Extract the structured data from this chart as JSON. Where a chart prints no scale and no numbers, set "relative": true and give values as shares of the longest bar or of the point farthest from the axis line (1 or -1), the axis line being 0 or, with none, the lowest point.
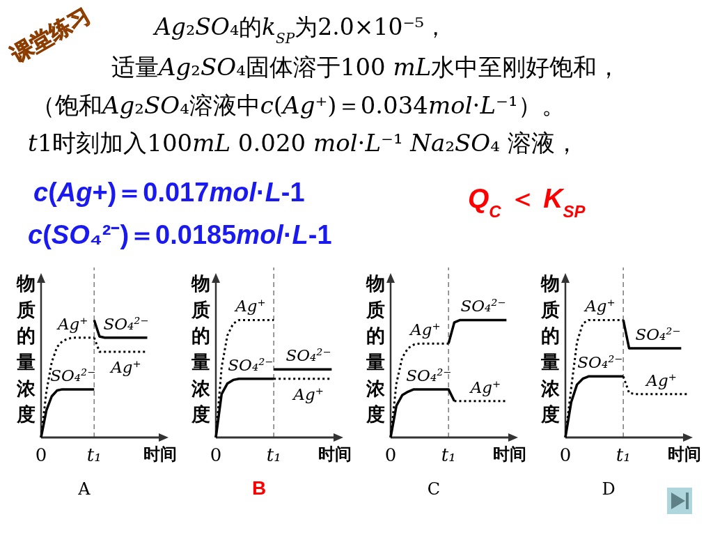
{
  "chart_data": [
    {
      "type": "other",
      "title": "课堂练习",
      "annotations": [
        "Ag₂SO₄的k$_{SP}$为2.0×10⁻⁵，",
        "适量Ag₂SO₄固体溶于100 mL水中至刚好饱和，",
        "（饱和Ag₂SO₄溶液中c(Ag⁺)＝0.034mol·L⁻¹）。",
        "t1时刻加入100mL 0.020 mol·L⁻¹ Na₂SO₄ 溶液，",
        "c(Ag+)＝0.017mol·L-1",
        "c(SO₄²⁻)＝0.0185mol·L-1",
        "Q$_{C}$ ＜ K$_{SP}$"
      ]
    },
    {
      "type": "line",
      "title": "A",
      "xlabel": "时间",
      "ylabel": "物质的量浓度",
      "relative": true,
      "categories": [
        "0",
        null,
        null,
        null,
        null,
        null,
        null,
        null,
        null,
        null,
        "t₁",
        null,
        null,
        null,
        null,
        null,
        null,
        null,
        null,
        null,
        null,
        null,
        null,
        null,
        null
      ],
      "ref_lines": [
        {
          "axis": "x",
          "value": "t₁",
          "color": "#808080",
          "line_style": "dashed"
        }
      ],
      "series": [
        {
          "name": "Ag⁺",
          "color": "#000000",
          "line_style": "dotted",
          "values": [
            0,
            0.39,
            0.64,
            0.77,
            0.82,
            0.84,
            0.85,
            0.85,
            0.85,
            0.85,
            0.85,
            null,
            null,
            null,
            null,
            null,
            null,
            null,
            null,
            null,
            null,
            null,
            null,
            null,
            null
          ]
        },
        {
          "name": "SO₄²⁻",
          "color": "#000000",
          "line_style": "solid",
          "values": [
            0,
            0.23,
            0.35,
            0.4,
            0.41,
            0.41,
            0.41,
            0.41,
            0.41,
            0.41,
            0.41,
            null,
            null,
            null,
            null,
            null,
            null,
            null,
            null,
            null,
            null,
            null,
            null,
            null,
            null
          ]
        },
        {
          "name": "SO₄²⁻",
          "color": "#000000",
          "line_style": "solid",
          "values": [
            null,
            null,
            null,
            null,
            null,
            null,
            null,
            null,
            null,
            null,
            1.0,
            0.86,
            0.85,
            0.85,
            0.85,
            0.85,
            0.85,
            0.85,
            0.85,
            0.85,
            0.85,
            null,
            null,
            null,
            null
          ]
        },
        {
          "name": "Ag⁺",
          "color": "#000000",
          "line_style": "dotted",
          "values": [
            null,
            null,
            null,
            null,
            null,
            null,
            null,
            null,
            null,
            null,
            0.85,
            0.73,
            0.73,
            0.73,
            0.73,
            0.73,
            0.73,
            0.73,
            0.73,
            0.73,
            0.73,
            null,
            null,
            null,
            null
          ]
        }
      ]
    },
    {
      "type": "line",
      "title": "B",
      "xlabel": "时间",
      "ylabel": "物质的量浓度",
      "relative": true,
      "categories": [
        "0",
        null,
        null,
        null,
        null,
        null,
        null,
        null,
        null,
        null,
        "t₁",
        null,
        null,
        null,
        null,
        null,
        null,
        null,
        null,
        null,
        null,
        null,
        null
      ],
      "ref_lines": [
        {
          "axis": "x",
          "value": "t₁",
          "color": "#808080",
          "line_style": "dashed"
        }
      ],
      "series": [
        {
          "name": "Ag⁺",
          "color": "#000000",
          "line_style": "dotted",
          "values": [
            0,
            0.6,
            0.87,
            0.97,
            1.0,
            1.0,
            1.0,
            1.0,
            1.0,
            1.0,
            1.0,
            null,
            null,
            null,
            null,
            null,
            null,
            null,
            null,
            null,
            null,
            null,
            null
          ]
        },
        {
          "name": "SO₄²⁻",
          "color": "#000000",
          "line_style": "solid",
          "values": [
            0,
            0.37,
            0.46,
            0.49,
            0.5,
            0.5,
            0.5,
            0.5,
            0.5,
            0.5,
            0.5,
            null,
            null,
            null,
            null,
            null,
            null,
            null,
            null,
            null,
            null,
            null,
            null
          ]
        },
        {
          "name": "SO₄²⁻",
          "color": "#000000",
          "line_style": "solid",
          "values": [
            null,
            null,
            null,
            null,
            null,
            null,
            null,
            null,
            null,
            null,
            0.58,
            0.58,
            0.58,
            0.58,
            0.58,
            0.58,
            0.58,
            0.58,
            0.58,
            0.58,
            0.58,
            null,
            null
          ]
        },
        {
          "name": "Ag⁺",
          "color": "#000000",
          "line_style": "dotted",
          "values": [
            null,
            null,
            null,
            null,
            null,
            null,
            null,
            null,
            null,
            null,
            0.5,
            0.5,
            0.5,
            0.5,
            0.5,
            0.5,
            0.5,
            0.5,
            0.5,
            0.5,
            0.5,
            null,
            null
          ]
        }
      ]
    },
    {
      "type": "line",
      "title": "C",
      "xlabel": "时间",
      "ylabel": "物质的量浓度",
      "relative": true,
      "categories": [
        "0",
        null,
        null,
        null,
        null,
        null,
        null,
        null,
        null,
        null,
        "t₁",
        null,
        null,
        null,
        null,
        null,
        null,
        null,
        null,
        null,
        null,
        null,
        null
      ],
      "ref_lines": [
        {
          "axis": "x",
          "value": "t₁",
          "color": "#808080",
          "line_style": "dashed"
        }
      ],
      "series": [
        {
          "name": "Ag⁺",
          "color": "#000000",
          "line_style": "dotted",
          "values": [
            0,
            0.46,
            0.68,
            0.76,
            0.79,
            0.8,
            0.8,
            0.8,
            0.8,
            0.8,
            0.8,
            null,
            null,
            null,
            null,
            null,
            null,
            null,
            null,
            null,
            null,
            null,
            null
          ]
        },
        {
          "name": "SO₄²⁻",
          "color": "#000000",
          "line_style": "solid",
          "values": [
            0,
            0.27,
            0.36,
            0.39,
            0.41,
            0.41,
            0.41,
            0.41,
            0.41,
            0.41,
            0.41,
            0.31,
            null,
            null,
            null,
            null,
            null,
            null,
            null,
            null,
            null,
            null,
            null
          ]
        },
        {
          "name": "SO₄²⁻",
          "color": "#000000",
          "line_style": "solid",
          "values": [
            null,
            null,
            null,
            null,
            null,
            null,
            null,
            null,
            null,
            null,
            0.8,
            0.98,
            1.0,
            1.0,
            1.0,
            1.0,
            1.0,
            1.0,
            1.0,
            1.0,
            1.0,
            null,
            null
          ]
        },
        {
          "name": "Ag⁺",
          "color": "#000000",
          "line_style": "dotted",
          "values": [
            null,
            null,
            null,
            null,
            null,
            null,
            null,
            null,
            null,
            null,
            null,
            0.31,
            0.31,
            0.31,
            0.31,
            0.31,
            0.31,
            0.31,
            0.31,
            0.31,
            0.31,
            null,
            null
          ]
        }
      ]
    },
    {
      "type": "line",
      "title": "D",
      "xlabel": "时间",
      "ylabel": "物质的量浓度",
      "relative": true,
      "categories": [
        "0",
        null,
        null,
        null,
        null,
        null,
        null,
        null,
        null,
        null,
        "t₁",
        null,
        null,
        null,
        null,
        null,
        null,
        null,
        null,
        null,
        null,
        null,
        null
      ],
      "ref_lines": [
        {
          "axis": "x",
          "value": "t₁",
          "color": "#808080",
          "line_style": "dashed"
        }
      ],
      "series": [
        {
          "name": "Ag⁺",
          "color": "#000000",
          "line_style": "dotted",
          "values": [
            0,
            0.42,
            0.81,
            0.97,
            1.0,
            1.0,
            1.0,
            1.0,
            1.0,
            1.0,
            1.0,
            null,
            null,
            null,
            null,
            null,
            null,
            null,
            null,
            null,
            null,
            null,
            null
          ]
        },
        {
          "name": "SO₄²⁻",
          "color": "#000000",
          "line_style": "solid",
          "values": [
            0,
            0.3,
            0.45,
            0.5,
            0.52,
            0.52,
            0.52,
            0.52,
            0.52,
            0.52,
            0.52,
            null,
            null,
            null,
            null,
            null,
            null,
            null,
            null,
            null,
            null,
            null,
            null
          ]
        },
        {
          "name": "SO₄²⁻",
          "color": "#000000",
          "line_style": "solid",
          "values": [
            null,
            null,
            null,
            null,
            null,
            null,
            null,
            null,
            null,
            null,
            1.0,
            0.76,
            0.76,
            0.76,
            0.76,
            0.76,
            0.76,
            0.76,
            0.76,
            0.76,
            0.76,
            null,
            null
          ]
        },
        {
          "name": "Ag⁺",
          "color": "#000000",
          "line_style": "dotted",
          "values": [
            null,
            null,
            null,
            null,
            null,
            null,
            null,
            null,
            null,
            null,
            0.52,
            0.38,
            0.37,
            0.37,
            0.37,
            0.37,
            0.37,
            0.37,
            0.37,
            0.37,
            0.37,
            0.37,
            null
          ]
        }
      ]
    }
  ]
}
